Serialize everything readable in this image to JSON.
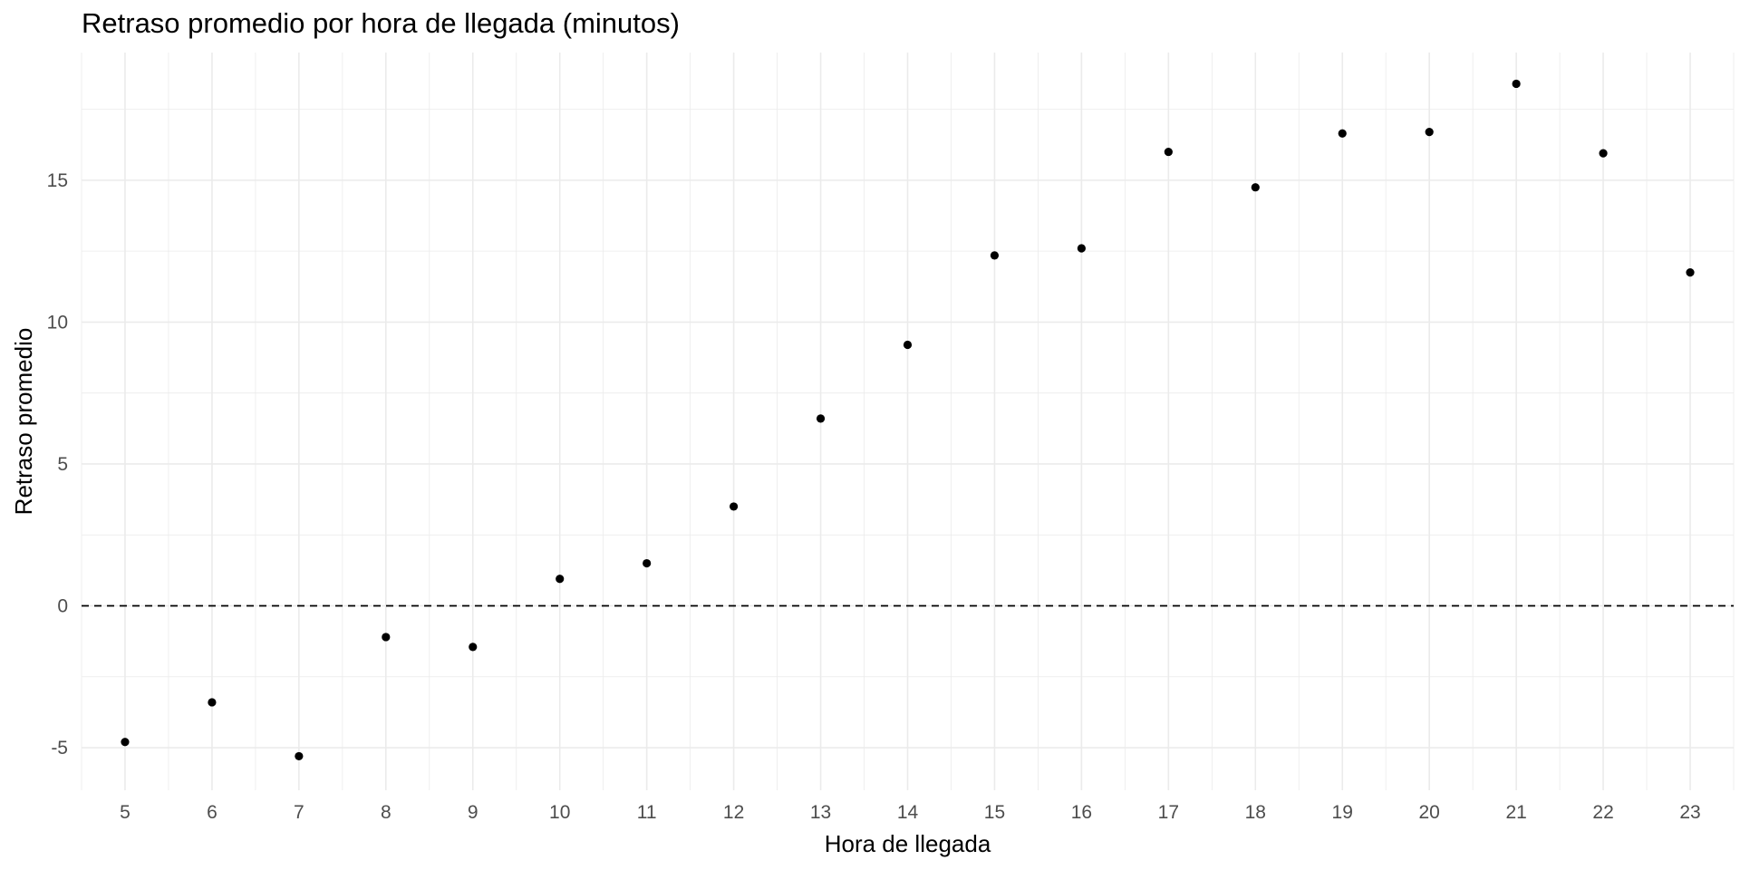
{
  "chart_data": {
    "type": "scatter",
    "title": "Retraso promedio por hora de llegada (minutos)",
    "xlabel": "Hora de llegada",
    "ylabel": "Retraso promedio",
    "x": [
      5,
      6,
      7,
      8,
      9,
      10,
      11,
      12,
      13,
      14,
      15,
      16,
      17,
      18,
      19,
      20,
      21,
      22,
      23
    ],
    "y": [
      -4.8,
      -3.4,
      -5.3,
      -1.1,
      -1.45,
      0.95,
      1.5,
      3.5,
      6.6,
      9.2,
      12.35,
      12.6,
      16.0,
      14.75,
      16.65,
      16.7,
      18.4,
      15.95,
      11.75
    ],
    "xlim": [
      4.5,
      23.5
    ],
    "ylim": [
      -6.5,
      19.5
    ],
    "x_ticks": [
      "5",
      "6",
      "7",
      "8",
      "9",
      "10",
      "11",
      "12",
      "13",
      "14",
      "15",
      "16",
      "17",
      "18",
      "19",
      "20",
      "21",
      "22",
      "23"
    ],
    "y_ticks": [
      "-5",
      "0",
      "5",
      "10",
      "15"
    ],
    "reference_line": {
      "y": 0,
      "style": "dashed"
    },
    "grid": true,
    "point_color": "#000000",
    "grid_color": "#ebebeb"
  }
}
